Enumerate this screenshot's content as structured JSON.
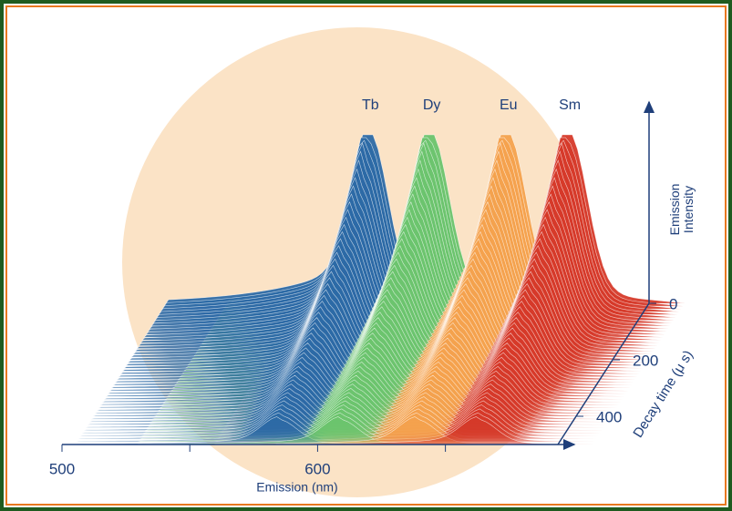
{
  "chart_data": {
    "type": "waterfall",
    "xlabel": "Emission (nm)",
    "ylabel": "Emission Intensity",
    "zlabel": "Decay time (μ s)",
    "xlim": [
      500,
      694
    ],
    "xticks": [
      500,
      600
    ],
    "minor_xticks": [
      550,
      650
    ],
    "zlim": [
      0,
      500
    ],
    "zticks": [
      0,
      200,
      400
    ],
    "series": [
      {
        "name": "Tb",
        "color": "#2d6aa6",
        "peak": 585
      },
      {
        "name": "Dy",
        "color": "#6cc46e",
        "peak": 609
      },
      {
        "name": "Eu",
        "color": "#f4a24e",
        "peak": 639
      },
      {
        "name": "Sm",
        "color": "#d63a2a",
        "peak": 663
      }
    ]
  }
}
